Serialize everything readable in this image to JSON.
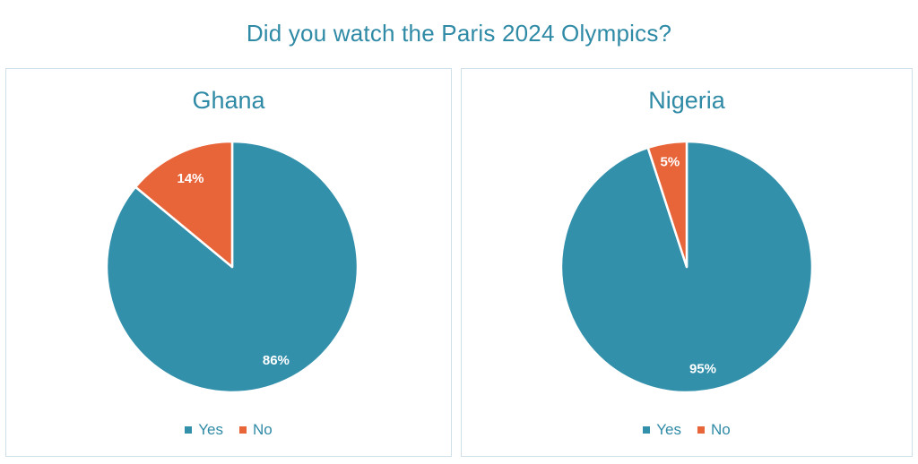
{
  "title": "Did you watch the Paris 2024 Olympics?",
  "colors": {
    "Yes": "#3390ab",
    "No": "#e8653a"
  },
  "chart_data": [
    {
      "type": "pie",
      "title": "Ghana",
      "categories": [
        "Yes",
        "No"
      ],
      "values": [
        86,
        14
      ],
      "labels": [
        "86%",
        "14%"
      ],
      "legend": [
        "Yes",
        "No"
      ],
      "legend_position": "bottom"
    },
    {
      "type": "pie",
      "title": "Nigeria",
      "categories": [
        "Yes",
        "No"
      ],
      "values": [
        95,
        5
      ],
      "labels": [
        "95%",
        "5%"
      ],
      "legend": [
        "Yes",
        "No"
      ],
      "legend_position": "bottom"
    }
  ]
}
